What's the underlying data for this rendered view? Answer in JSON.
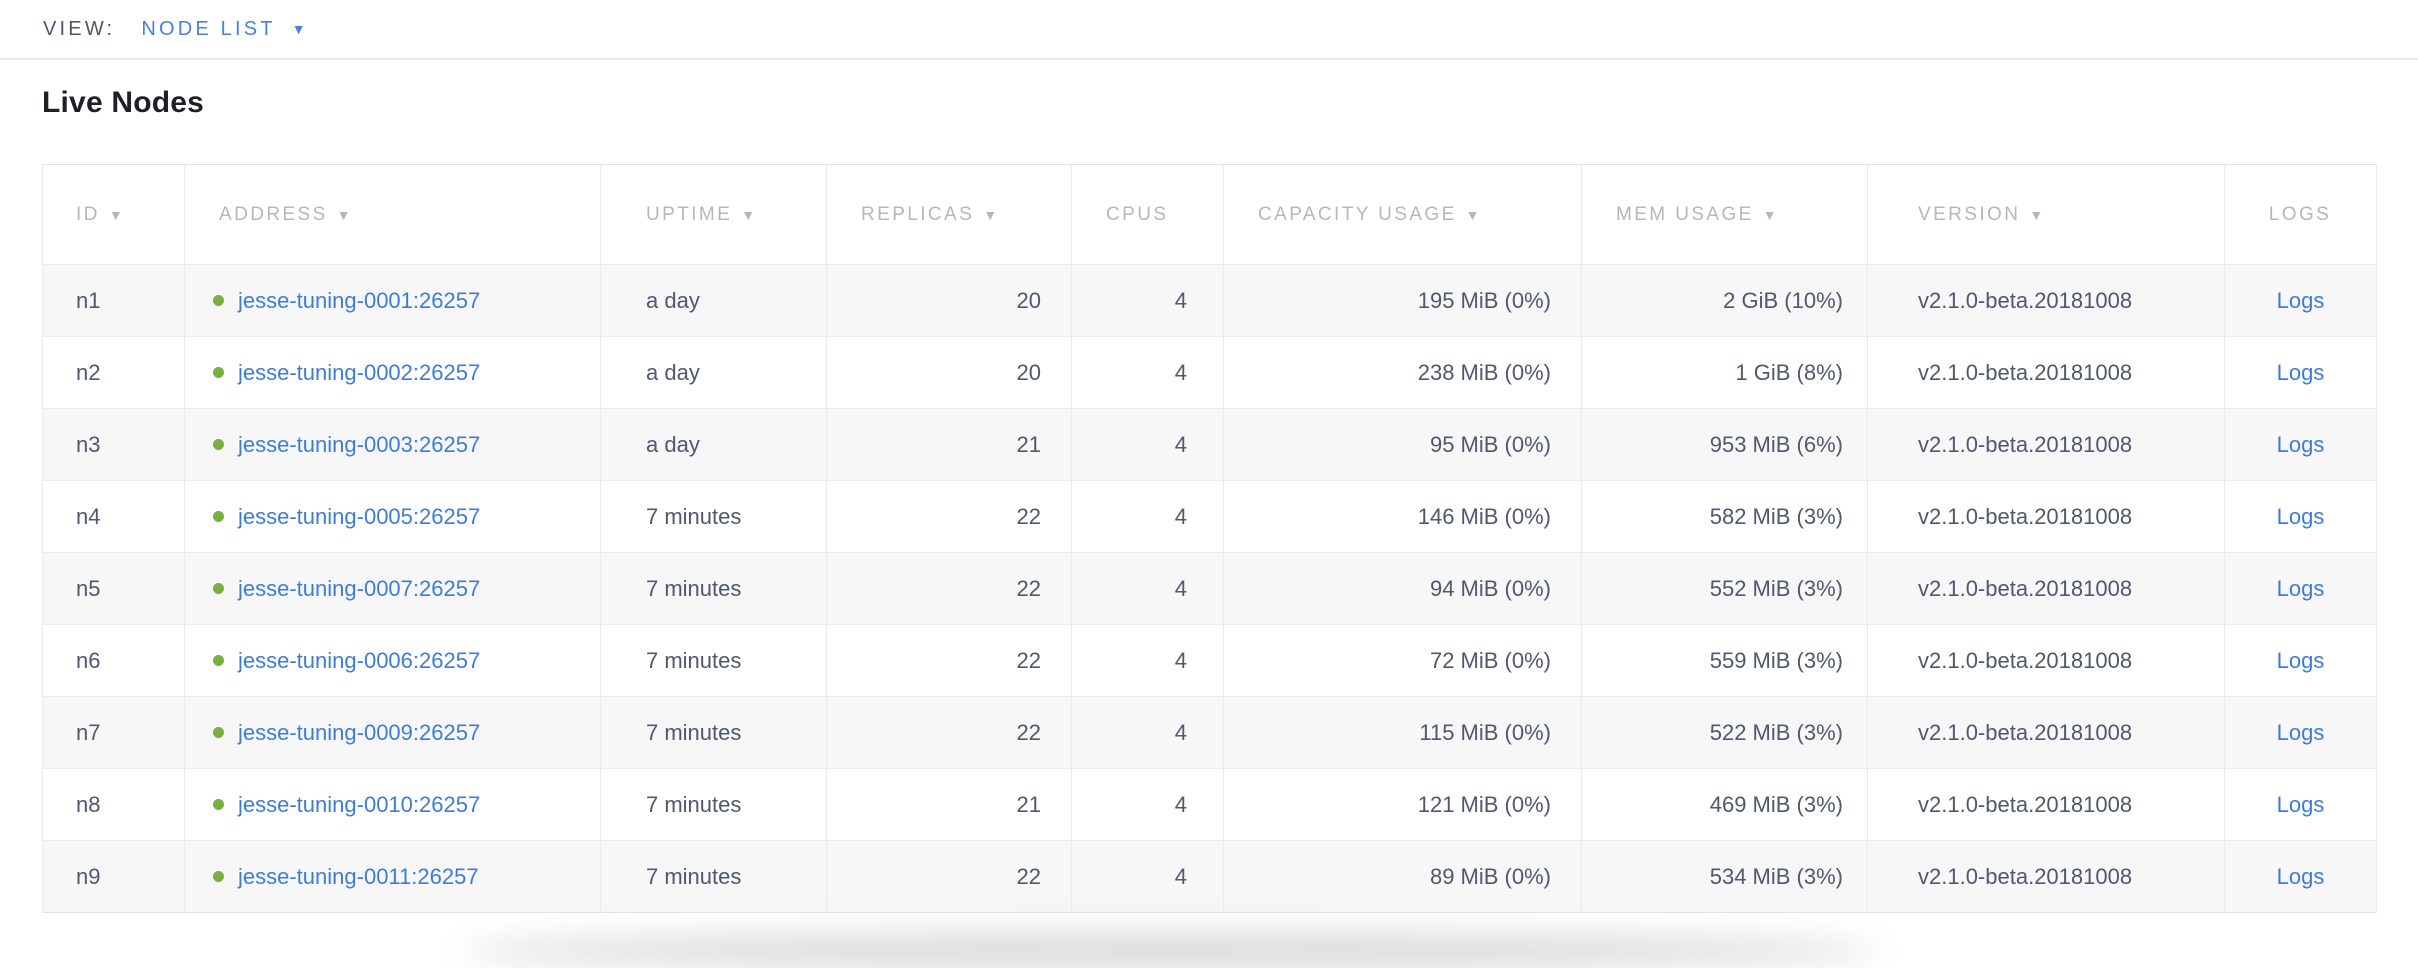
{
  "view_bar": {
    "label": "VIEW:",
    "selected": "NODE LIST",
    "caret": "▼"
  },
  "page": {
    "title": "Live Nodes"
  },
  "colors": {
    "link_blue": "#3e7cd9",
    "accent_blue": "#4a80dd",
    "status_live_green": "#76b23d",
    "header_gray": "#b4b7bb",
    "cell_text": "#4f586c"
  },
  "table": {
    "columns": [
      {
        "key": "id",
        "label": "ID",
        "sort_icon": true
      },
      {
        "key": "address",
        "label": "ADDRESS",
        "sort_icon": true
      },
      {
        "key": "uptime",
        "label": "UPTIME",
        "sort_icon": true
      },
      {
        "key": "replicas",
        "label": "REPLICAS",
        "sort_icon": true
      },
      {
        "key": "cpus",
        "label": "CPUS",
        "sort_icon": false
      },
      {
        "key": "capacity",
        "label": "CAPACITY USAGE",
        "sort_icon": true
      },
      {
        "key": "mem",
        "label": "MEM USAGE",
        "sort_icon": true
      },
      {
        "key": "version",
        "label": "VERSION",
        "sort_icon": true
      },
      {
        "key": "logs",
        "label": "LOGS",
        "sort_icon": false
      }
    ],
    "sort_icon_glyph": "▼",
    "rows": [
      {
        "id": "n1",
        "status": "live",
        "address": "jesse-tuning-0001:26257",
        "uptime": "a day",
        "replicas": "20",
        "cpus": "4",
        "capacity": "195 MiB (0%)",
        "mem": "2 GiB (10%)",
        "version": "v2.1.0-beta.20181008",
        "logs": "Logs"
      },
      {
        "id": "n2",
        "status": "live",
        "address": "jesse-tuning-0002:26257",
        "uptime": "a day",
        "replicas": "20",
        "cpus": "4",
        "capacity": "238 MiB (0%)",
        "mem": "1 GiB (8%)",
        "version": "v2.1.0-beta.20181008",
        "logs": "Logs"
      },
      {
        "id": "n3",
        "status": "live",
        "address": "jesse-tuning-0003:26257",
        "uptime": "a day",
        "replicas": "21",
        "cpus": "4",
        "capacity": "95 MiB (0%)",
        "mem": "953 MiB (6%)",
        "version": "v2.1.0-beta.20181008",
        "logs": "Logs"
      },
      {
        "id": "n4",
        "status": "live",
        "address": "jesse-tuning-0005:26257",
        "uptime": "7 minutes",
        "replicas": "22",
        "cpus": "4",
        "capacity": "146 MiB (0%)",
        "mem": "582 MiB (3%)",
        "version": "v2.1.0-beta.20181008",
        "logs": "Logs"
      },
      {
        "id": "n5",
        "status": "live",
        "address": "jesse-tuning-0007:26257",
        "uptime": "7 minutes",
        "replicas": "22",
        "cpus": "4",
        "capacity": "94 MiB (0%)",
        "mem": "552 MiB (3%)",
        "version": "v2.1.0-beta.20181008",
        "logs": "Logs"
      },
      {
        "id": "n6",
        "status": "live",
        "address": "jesse-tuning-0006:26257",
        "uptime": "7 minutes",
        "replicas": "22",
        "cpus": "4",
        "capacity": "72 MiB (0%)",
        "mem": "559 MiB (3%)",
        "version": "v2.1.0-beta.20181008",
        "logs": "Logs"
      },
      {
        "id": "n7",
        "status": "live",
        "address": "jesse-tuning-0009:26257",
        "uptime": "7 minutes",
        "replicas": "22",
        "cpus": "4",
        "capacity": "115 MiB (0%)",
        "mem": "522 MiB (3%)",
        "version": "v2.1.0-beta.20181008",
        "logs": "Logs"
      },
      {
        "id": "n8",
        "status": "live",
        "address": "jesse-tuning-0010:26257",
        "uptime": "7 minutes",
        "replicas": "21",
        "cpus": "4",
        "capacity": "121 MiB (0%)",
        "mem": "469 MiB (3%)",
        "version": "v2.1.0-beta.20181008",
        "logs": "Logs"
      },
      {
        "id": "n9",
        "status": "live",
        "address": "jesse-tuning-0011:26257",
        "uptime": "7 minutes",
        "replicas": "22",
        "cpus": "4",
        "capacity": "89 MiB (0%)",
        "mem": "534 MiB (3%)",
        "version": "v2.1.0-beta.20181008",
        "logs": "Logs"
      }
    ]
  }
}
